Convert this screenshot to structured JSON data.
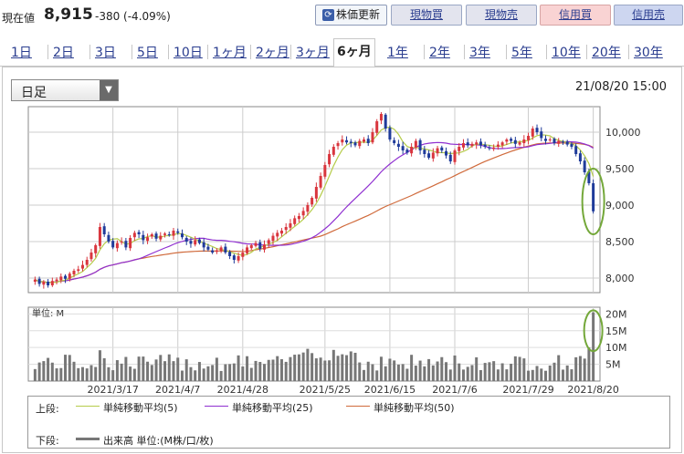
{
  "header": {
    "price_label": "現在値",
    "price": "8,915",
    "change": "-380 (-4.09%)",
    "buttons": {
      "update": "株価更新",
      "genbutsu_buy": "現物買",
      "genbutsu_sell": "現物売",
      "shinyo_buy": "信用買",
      "shinyo_sell": "信用売"
    }
  },
  "tabs": [
    {
      "label": "1日"
    },
    {
      "label": "2日"
    },
    {
      "label": "3日"
    },
    {
      "label": "5日"
    },
    {
      "label": "10日"
    },
    {
      "label": "1ヶ月"
    },
    {
      "label": "2ヶ月"
    },
    {
      "label": "3ヶ月"
    },
    {
      "label": "6ヶ月",
      "active": true
    },
    {
      "label": "1年"
    },
    {
      "label": "2年"
    },
    {
      "label": "3年"
    },
    {
      "label": "5年"
    },
    {
      "label": "10年"
    },
    {
      "label": "20年"
    },
    {
      "label": "30年"
    }
  ],
  "chart_controls": {
    "period_select": "日足",
    "datetime": "21/08/20 15:00"
  },
  "chart_data": {
    "type": "candlestick",
    "price_axis": {
      "ticks": [
        8000,
        8500,
        9000,
        9500,
        10000
      ],
      "tick_labels": [
        "8,000",
        "8,500",
        "9,000",
        "9,500",
        "10,000"
      ],
      "ylim": [
        7800,
        10350
      ]
    },
    "volume_axis": {
      "unit_label": "単位: M",
      "ticks": [
        5,
        10,
        15,
        20
      ],
      "tick_labels": [
        "5M",
        "10M",
        "15M",
        "20M"
      ],
      "ylim": [
        0,
        22
      ]
    },
    "x_tick_labels": [
      "2021/3/17",
      "2021/4/7",
      "2021/4/28",
      "2021/5/25",
      "2021/6/15",
      "2021/7/6",
      "2021/7/29",
      "2021/8/20"
    ],
    "x_tick_index": [
      18,
      33,
      48,
      67,
      82,
      97,
      114,
      129
    ],
    "num_bars": 130,
    "close": [
      7980,
      7920,
      7950,
      7900,
      7960,
      7980,
      8020,
      7990,
      8060,
      8100,
      8120,
      8180,
      8250,
      8350,
      8450,
      8700,
      8600,
      8500,
      8420,
      8480,
      8500,
      8420,
      8550,
      8620,
      8600,
      8520,
      8560,
      8600,
      8540,
      8580,
      8610,
      8590,
      8650,
      8620,
      8560,
      8500,
      8470,
      8520,
      8480,
      8420,
      8390,
      8350,
      8380,
      8420,
      8350,
      8300,
      8250,
      8300,
      8350,
      8420,
      8450,
      8480,
      8400,
      8460,
      8520,
      8580,
      8620,
      8650,
      8700,
      8750,
      8820,
      8850,
      8920,
      9000,
      9100,
      9250,
      9400,
      9550,
      9700,
      9800,
      9850,
      9900,
      9860,
      9850,
      9820,
      9880,
      9900,
      9850,
      10000,
      10150,
      10250,
      10050,
      9900,
      9850,
      9800,
      9750,
      9720,
      9800,
      9880,
      9750,
      9700,
      9650,
      9720,
      9780,
      9750,
      9680,
      9600,
      9750,
      9800,
      9850,
      9820,
      9840,
      9860,
      9820,
      9800,
      9780,
      9790,
      9830,
      9860,
      9900,
      9880,
      9840,
      9860,
      9900,
      9950,
      10050,
      10000,
      9920,
      9880,
      9900,
      9850,
      9880,
      9860,
      9830,
      9800,
      9700,
      9600,
      9450,
      9300,
      8915
    ],
    "open": [
      7950,
      7990,
      7910,
      7950,
      7900,
      7960,
      7970,
      8030,
      7990,
      8050,
      8100,
      8130,
      8180,
      8260,
      8340,
      8440,
      8710,
      8590,
      8510,
      8410,
      8490,
      8510,
      8410,
      8560,
      8630,
      8590,
      8510,
      8570,
      8610,
      8530,
      8590,
      8600,
      8580,
      8640,
      8610,
      8550,
      8510,
      8460,
      8530,
      8490,
      8430,
      8380,
      8360,
      8370,
      8430,
      8360,
      8310,
      8240,
      8290,
      8340,
      8410,
      8440,
      8490,
      8390,
      8470,
      8510,
      8570,
      8610,
      8660,
      8690,
      8740,
      8810,
      8860,
      8910,
      9010,
      9090,
      9240,
      9390,
      9560,
      9690,
      9810,
      9860,
      9890,
      9870,
      9860,
      9810,
      9870,
      9910,
      9860,
      9990,
      10160,
      10240,
      10060,
      9890,
      9840,
      9810,
      9760,
      9710,
      9790,
      9890,
      9760,
      9710,
      9640,
      9710,
      9790,
      9740,
      9690,
      9590,
      9740,
      9790,
      9860,
      9810,
      9830,
      9870,
      9830,
      9790,
      9770,
      9800,
      9820,
      9870,
      9910,
      9890,
      9830,
      9850,
      9890,
      9940,
      10060,
      10010,
      9910,
      9890,
      9910,
      9840,
      9870,
      9870,
      9840,
      9810,
      9710,
      9610,
      9460,
      9300
    ]
  },
  "legend": {
    "upper_label": "上段:",
    "lower_label": "下段:",
    "sma5": "単純移動平均(5)",
    "sma25": "単純移動平均(25)",
    "sma50": "単純移動平均(50)",
    "volume": "出来高 単位:(M株/口/枚)",
    "colors": {
      "sma5": "#b5cc4a",
      "sma25": "#8f2fd0",
      "sma50": "#d06a3b",
      "volume": "#777777",
      "up": "#d9363e",
      "down": "#1f3b9a",
      "highlight": "#74a83a"
    }
  }
}
